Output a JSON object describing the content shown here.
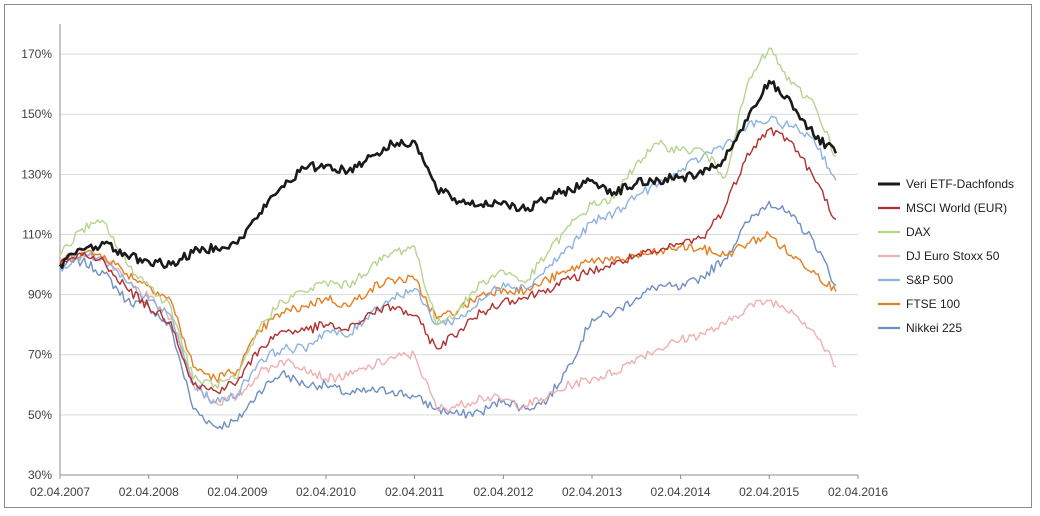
{
  "chart_data": {
    "type": "line",
    "title": "",
    "xlabel": "",
    "ylabel": "",
    "x_ticks": [
      "02.04.2007",
      "02.04.2008",
      "02.04.2009",
      "02.04.2010",
      "02.04.2011",
      "02.04.2012",
      "02.04.2013",
      "02.04.2014",
      "02.04.2015",
      "02.04.2016"
    ],
    "y_ticks": [
      "30%",
      "50%",
      "70%",
      "90%",
      "110%",
      "130%",
      "150%",
      "170%"
    ],
    "ylim": [
      30,
      180
    ],
    "xlim": [
      "2007-04-02",
      "2016-04-02"
    ],
    "grid": "horizontal",
    "legend_position": "right",
    "x": [
      "2007-04",
      "2007-07",
      "2007-10",
      "2008-01",
      "2008-04",
      "2008-07",
      "2008-10",
      "2009-01",
      "2009-04",
      "2009-07",
      "2009-10",
      "2010-01",
      "2010-04",
      "2010-07",
      "2010-10",
      "2011-01",
      "2011-04",
      "2011-07",
      "2011-10",
      "2012-01",
      "2012-04",
      "2012-07",
      "2012-10",
      "2013-01",
      "2013-04",
      "2013-07",
      "2013-10",
      "2014-01",
      "2014-04",
      "2014-07",
      "2014-10",
      "2015-01",
      "2015-04",
      "2015-07",
      "2015-10",
      "2016-01"
    ],
    "series": [
      {
        "name": "Veri ETF-Dachfonds",
        "color": "#1a1a1a",
        "values": [
          100,
          105,
          107,
          103,
          101,
          100,
          104,
          106,
          107,
          117,
          126,
          132,
          133,
          131,
          136,
          140,
          141,
          125,
          121,
          120,
          121,
          118,
          122,
          125,
          128,
          124,
          127,
          128,
          129,
          130,
          135,
          148,
          161,
          154,
          143,
          137
        ]
      },
      {
        "name": "MSCI World (EUR)",
        "color": "#b0302e",
        "values": [
          100,
          103,
          101,
          92,
          86,
          81,
          60,
          58,
          61,
          72,
          78,
          78,
          80,
          78,
          84,
          86,
          83,
          72,
          78,
          84,
          88,
          89,
          92,
          95,
          98,
          100,
          103,
          104,
          107,
          109,
          119,
          137,
          145,
          141,
          129,
          115
        ]
      },
      {
        "name": "DAX",
        "color": "#b5d58f",
        "values": [
          103,
          112,
          114,
          100,
          93,
          86,
          62,
          60,
          62,
          79,
          88,
          91,
          94,
          93,
          99,
          104,
          106,
          80,
          85,
          94,
          98,
          94,
          104,
          113,
          120,
          122,
          134,
          140,
          138,
          138,
          129,
          160,
          172,
          160,
          154,
          136
        ]
      },
      {
        "name": "DJ Euro Stoxx 50",
        "color": "#eeb0b0",
        "values": [
          101,
          104,
          102,
          94,
          89,
          82,
          60,
          54,
          56,
          64,
          68,
          66,
          62,
          63,
          66,
          69,
          70,
          52,
          53,
          56,
          55,
          53,
          56,
          60,
          62,
          64,
          69,
          72,
          75,
          77,
          80,
          86,
          88,
          85,
          78,
          66
        ]
      },
      {
        "name": "S&P 500",
        "color": "#8db3e2",
        "values": [
          99,
          103,
          101,
          94,
          88,
          83,
          60,
          54,
          57,
          68,
          72,
          72,
          78,
          76,
          84,
          89,
          92,
          80,
          82,
          88,
          94,
          92,
          99,
          106,
          114,
          117,
          123,
          127,
          131,
          136,
          140,
          146,
          148,
          146,
          142,
          128
        ]
      },
      {
        "name": "FTSE 100",
        "color": "#e67e22",
        "values": [
          101,
          104,
          103,
          97,
          93,
          88,
          66,
          62,
          65,
          78,
          84,
          86,
          89,
          86,
          92,
          95,
          95,
          82,
          85,
          90,
          92,
          91,
          95,
          98,
          102,
          101,
          103,
          104,
          106,
          105,
          103,
          107,
          110,
          103,
          98,
          91
        ]
      },
      {
        "name": "Nikkei 225",
        "color": "#6f8fc4",
        "values": [
          100,
          101,
          97,
          88,
          86,
          79,
          52,
          46,
          48,
          58,
          64,
          60,
          60,
          57,
          58,
          58,
          56,
          52,
          50,
          51,
          55,
          52,
          55,
          67,
          82,
          84,
          89,
          93,
          92,
          96,
          102,
          114,
          121,
          116,
          108,
          93
        ]
      }
    ]
  }
}
